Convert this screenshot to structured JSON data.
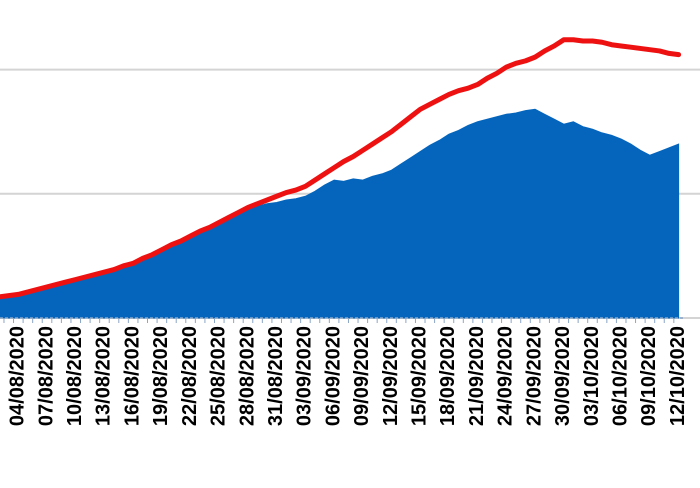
{
  "chart_data": {
    "type": "area",
    "categories": [
      null,
      null,
      "04/08/2020",
      null,
      null,
      "07/08/2020",
      null,
      null,
      "10/08/2020",
      null,
      null,
      "13/08/2020",
      null,
      null,
      "16/08/2020",
      null,
      null,
      "19/08/2020",
      null,
      null,
      "22/08/2020",
      null,
      null,
      "25/08/2020",
      null,
      null,
      "28/08/2020",
      null,
      null,
      "31/08/2020",
      null,
      null,
      "03/09/2020",
      null,
      null,
      "06/09/2020",
      null,
      null,
      "09/09/2020",
      null,
      null,
      "12/09/2020",
      null,
      null,
      "15/09/2020",
      null,
      null,
      "18/09/2020",
      null,
      null,
      "21/09/2020",
      null,
      null,
      "24/09/2020",
      null,
      null,
      "27/09/2020",
      null,
      null,
      "30/09/2020",
      null,
      null,
      "03/10/2020",
      null,
      null,
      "06/10/2020",
      null,
      null,
      "09/10/2020",
      null,
      null,
      "12/10/2020"
    ],
    "series": [
      {
        "type": "area",
        "color": "#0565bd",
        "values": [
          0.17,
          0.18,
          0.19,
          0.2,
          0.22,
          0.23,
          0.25,
          0.27,
          0.29,
          0.31,
          0.33,
          0.35,
          0.38,
          0.4,
          0.43,
          0.47,
          0.51,
          0.55,
          0.59,
          0.63,
          0.67,
          0.7,
          0.74,
          0.77,
          0.81,
          0.85,
          0.89,
          0.9,
          0.92,
          0.93,
          0.95,
          0.96,
          0.98,
          1.02,
          1.07,
          1.11,
          1.1,
          1.12,
          1.11,
          1.14,
          1.16,
          1.19,
          1.24,
          1.29,
          1.34,
          1.39,
          1.43,
          1.48,
          1.51,
          1.55,
          1.58,
          1.6,
          1.62,
          1.64,
          1.65,
          1.67,
          1.68,
          1.64,
          1.6,
          1.56,
          1.58,
          1.54,
          1.52,
          1.49,
          1.47,
          1.44,
          1.4,
          1.35,
          1.31,
          1.34,
          1.37,
          1.4
        ]
      },
      {
        "type": "line",
        "color": "#ee1111",
        "values": [
          0.17,
          0.18,
          0.19,
          0.21,
          0.23,
          0.25,
          0.27,
          0.29,
          0.31,
          0.33,
          0.35,
          0.37,
          0.39,
          0.42,
          0.44,
          0.48,
          0.51,
          0.55,
          0.59,
          0.62,
          0.66,
          0.7,
          0.73,
          0.77,
          0.81,
          0.85,
          0.89,
          0.92,
          0.95,
          0.98,
          1.01,
          1.03,
          1.06,
          1.11,
          1.16,
          1.21,
          1.26,
          1.3,
          1.35,
          1.4,
          1.45,
          1.5,
          1.56,
          1.62,
          1.68,
          1.72,
          1.76,
          1.8,
          1.83,
          1.85,
          1.88,
          1.93,
          1.97,
          2.02,
          2.05,
          2.07,
          2.1,
          2.15,
          2.19,
          2.24,
          2.24,
          2.23,
          2.23,
          2.22,
          2.2,
          2.19,
          2.18,
          2.17,
          2.16,
          2.15,
          2.13,
          2.12
        ]
      }
    ],
    "ylim": [
      0,
      2.56
    ],
    "yticks": [
      0,
      1,
      2
    ],
    "grid": true
  }
}
